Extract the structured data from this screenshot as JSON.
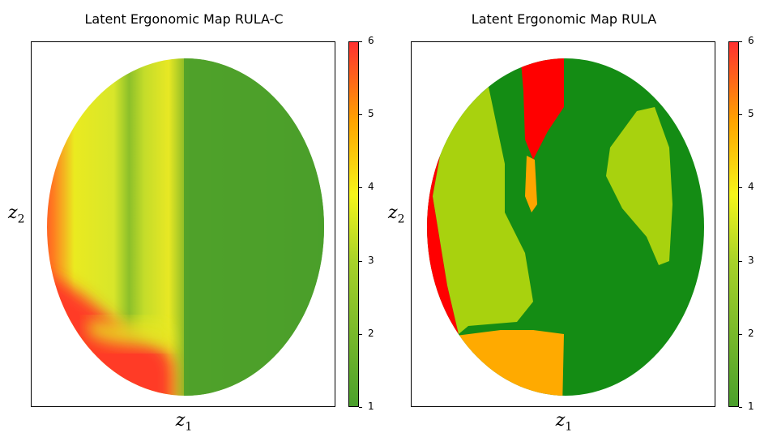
{
  "chart_data": [
    {
      "type": "scatter",
      "title": "Latent Ergonomic Map RULA-C",
      "xlabel": "z1",
      "ylabel": "z2",
      "colorbar": {
        "min": 1,
        "max": 6,
        "ticks": [
          "1",
          "2",
          "3",
          "4",
          "5",
          "6"
        ],
        "colors": [
          "#4aa02c",
          "#a8d22a",
          "#f5f51a",
          "#ffa500",
          "#ff3030"
        ]
      },
      "regions": [
        {
          "name": "left-edge",
          "value": 5.8
        },
        {
          "name": "left-band",
          "value": 3.6
        },
        {
          "name": "upper-middle",
          "value": 3.3
        },
        {
          "name": "center-right",
          "value": 1.4
        }
      ]
    },
    {
      "type": "scatter",
      "title": "Latent Ergonomic Map RULA",
      "xlabel": "z1",
      "ylabel": "z2",
      "colorbar": {
        "min": 1,
        "max": 6,
        "ticks": [
          "1",
          "2",
          "3",
          "4",
          "5",
          "6"
        ],
        "colors": [
          "#4aa02c",
          "#a8d22a",
          "#f5f51a",
          "#ffa500",
          "#ff3030"
        ]
      },
      "regions": [
        {
          "name": "background",
          "value": 1
        },
        {
          "name": "left-strip",
          "value": 6
        },
        {
          "name": "left-band",
          "value": 3
        },
        {
          "name": "top-notch",
          "value": 6
        },
        {
          "name": "notch-tail",
          "value": 5
        },
        {
          "name": "right-blob",
          "value": 3
        },
        {
          "name": "bottom-patch",
          "value": 5
        }
      ]
    }
  ]
}
